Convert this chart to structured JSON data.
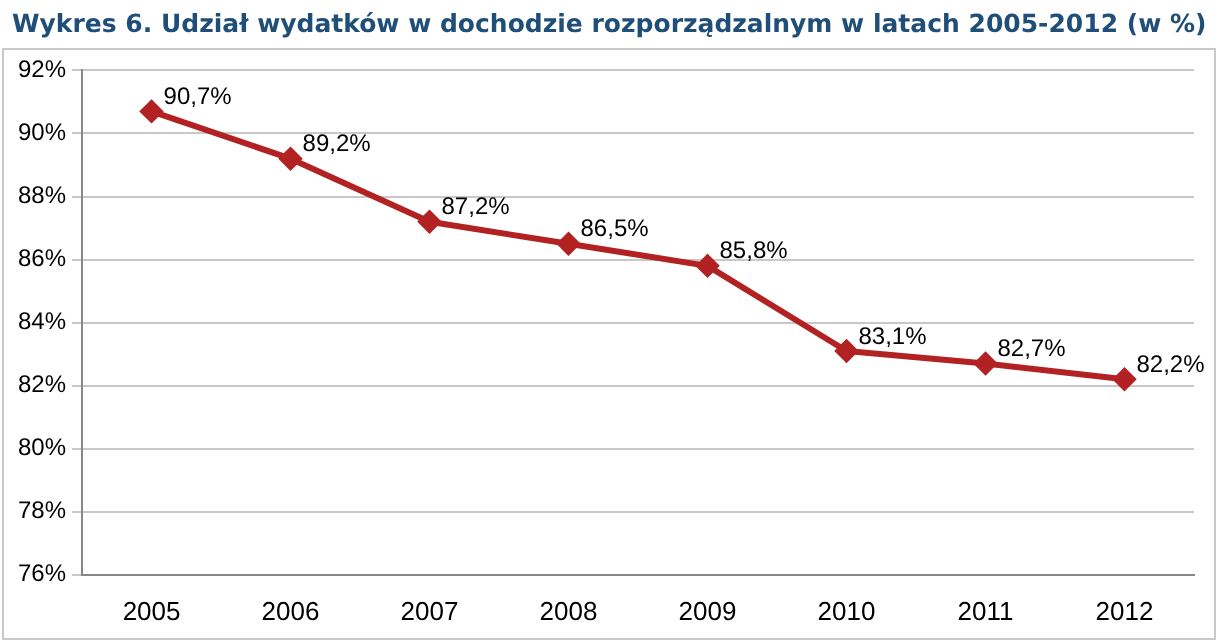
{
  "chart_data": {
    "type": "line",
    "title": "Wykres 6. Udział wydatków w dochodzie rozporządzalnym w latach 2005-2012 (w %)",
    "categories": [
      "2005",
      "2006",
      "2007",
      "2008",
      "2009",
      "2010",
      "2011",
      "2012"
    ],
    "series": [
      {
        "color": "#b22222",
        "values": [
          90.7,
          89.2,
          87.2,
          86.5,
          85.8,
          83.1,
          82.7,
          82.2
        ],
        "value_labels": [
          "90,7%",
          "89,2%",
          "87,2%",
          "86,5%",
          "85,8%",
          "83,1%",
          "82,7%",
          "82,2%"
        ]
      }
    ],
    "ylim": [
      76,
      92
    ],
    "yticks": [
      {
        "value": 76,
        "label": "76%"
      },
      {
        "value": 78,
        "label": "78%"
      },
      {
        "value": 80,
        "label": "80%"
      },
      {
        "value": 82,
        "label": "82%"
      },
      {
        "value": 84,
        "label": "84%"
      },
      {
        "value": 86,
        "label": "86%"
      },
      {
        "value": 88,
        "label": "88%"
      },
      {
        "value": 90,
        "label": "90%"
      },
      {
        "value": 92,
        "label": "92%"
      }
    ],
    "grid": "y",
    "legend": false,
    "marker": "diamond",
    "line_style": "solid"
  }
}
